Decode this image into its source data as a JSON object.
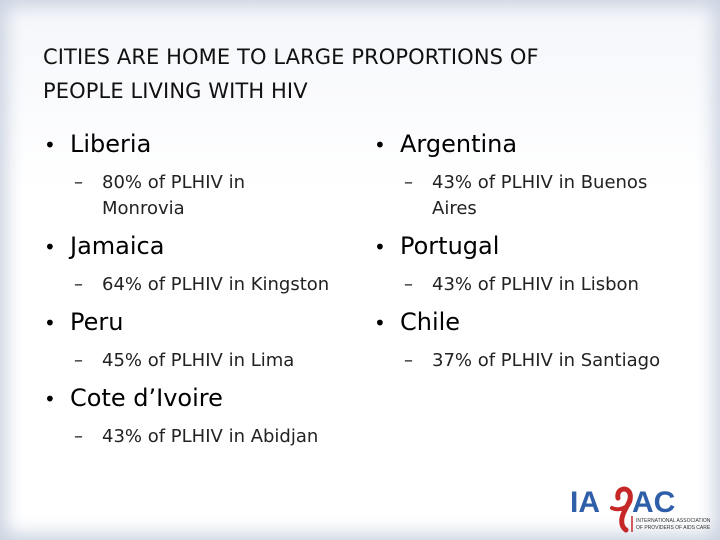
{
  "slide": {
    "title_line1": "CITIES ARE HOME TO LARGE PROPORTIONS OF",
    "title_line2": "PEOPLE LIVING WITH HIV"
  },
  "left_items": [
    {
      "country": "Liberia",
      "detail": "80% of PLHIV in Monrovia"
    },
    {
      "country": "Jamaica",
      "detail": "64% of PLHIV in Kingston"
    },
    {
      "country": "Peru",
      "detail": "45% of PLHIV in Lima"
    },
    {
      "country": "Cote d’Ivoire",
      "detail": "43% of PLHIV in Abidjan"
    }
  ],
  "right_items": [
    {
      "country": "Argentina",
      "detail": "43% of PLHIV in Buenos Aires"
    },
    {
      "country": "Portugal",
      "detail": "43% of PLHIV in Lisbon"
    },
    {
      "country": "Chile",
      "detail": "37% of PLHIV in Santiago"
    }
  ],
  "bullet_symbol": "•",
  "dash_symbol": "–",
  "logo": {
    "text_left": "IA",
    "text_right": "AC",
    "tagline_line1": "INTERNATIONAL ASSOCIATION",
    "tagline_line2": "OF PROVIDERS OF AIDS CARE",
    "blue": "#2e5fa8",
    "red": "#c62828"
  }
}
